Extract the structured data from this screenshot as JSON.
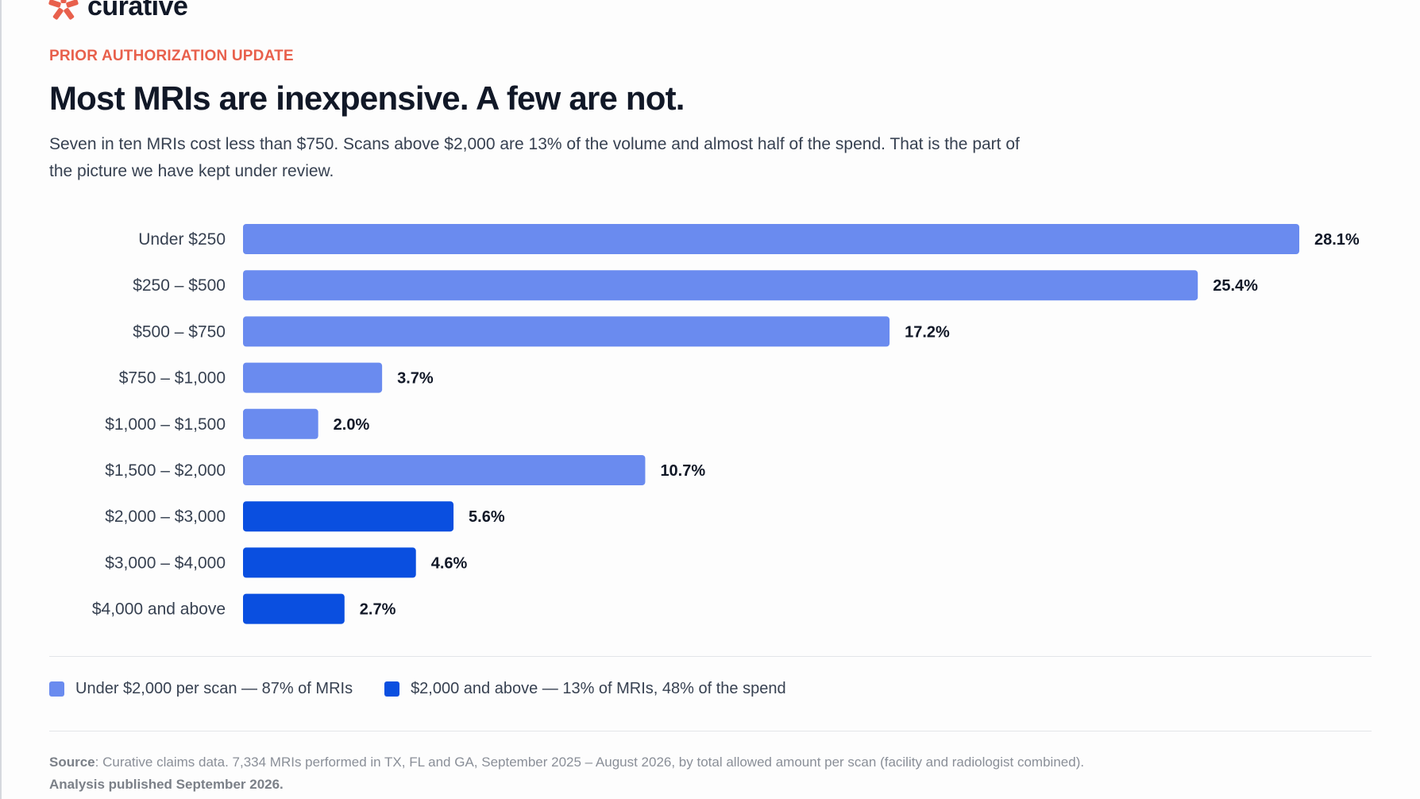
{
  "brand": {
    "name": "curative",
    "accent": "#e8604c"
  },
  "header": {
    "kicker": "PRIOR AUTHORIZATION UPDATE",
    "title": "Most MRIs are inexpensive. A few are not.",
    "subtitle": "Seven in ten MRIs cost less than $750. Scans above $2,000 are 13% of the volume and almost half of the spend. That is the part of the picture we have kept under review."
  },
  "chart_data": {
    "type": "bar",
    "orientation": "horizontal",
    "title": "",
    "xlabel": "",
    "ylabel": "",
    "categories": [
      "Under $250",
      "$250 – $500",
      "$500 – $750",
      "$750 – $1,000",
      "$1,000 – $1,500",
      "$1,500 – $2,000",
      "$2,000 – $3,000",
      "$3,000 – $4,000",
      "$4,000 and above"
    ],
    "values": [
      28.1,
      25.4,
      17.2,
      3.7,
      2.0,
      10.7,
      5.6,
      4.6,
      2.7
    ],
    "value_labels": [
      "28.1%",
      "25.4%",
      "17.2%",
      "3.7%",
      "2.0%",
      "10.7%",
      "5.6%",
      "4.6%",
      "2.7%"
    ],
    "groups": [
      "under",
      "under",
      "under",
      "under",
      "under",
      "under",
      "above",
      "above",
      "above"
    ],
    "group_colors": {
      "under": "#6a8bef",
      "above": "#0a4fe0"
    },
    "xlim": [
      0,
      28.1
    ],
    "grid": false,
    "legend_position": "bottom-left",
    "legend": [
      {
        "label": "Under $2,000 per scan — 87% of MRIs",
        "color": "#6a8bef"
      },
      {
        "label": "$2,000 and above — 13% of MRIs, 48% of the spend",
        "color": "#0a4fe0"
      }
    ]
  },
  "footer": {
    "source_label": "Source",
    "source_text": ": Curative claims data.  7,334 MRIs performed in TX, FL and GA, September 2025 – August 2026, by total allowed amount per scan (facility and radiologist combined).",
    "published": "Analysis published September 2026."
  }
}
